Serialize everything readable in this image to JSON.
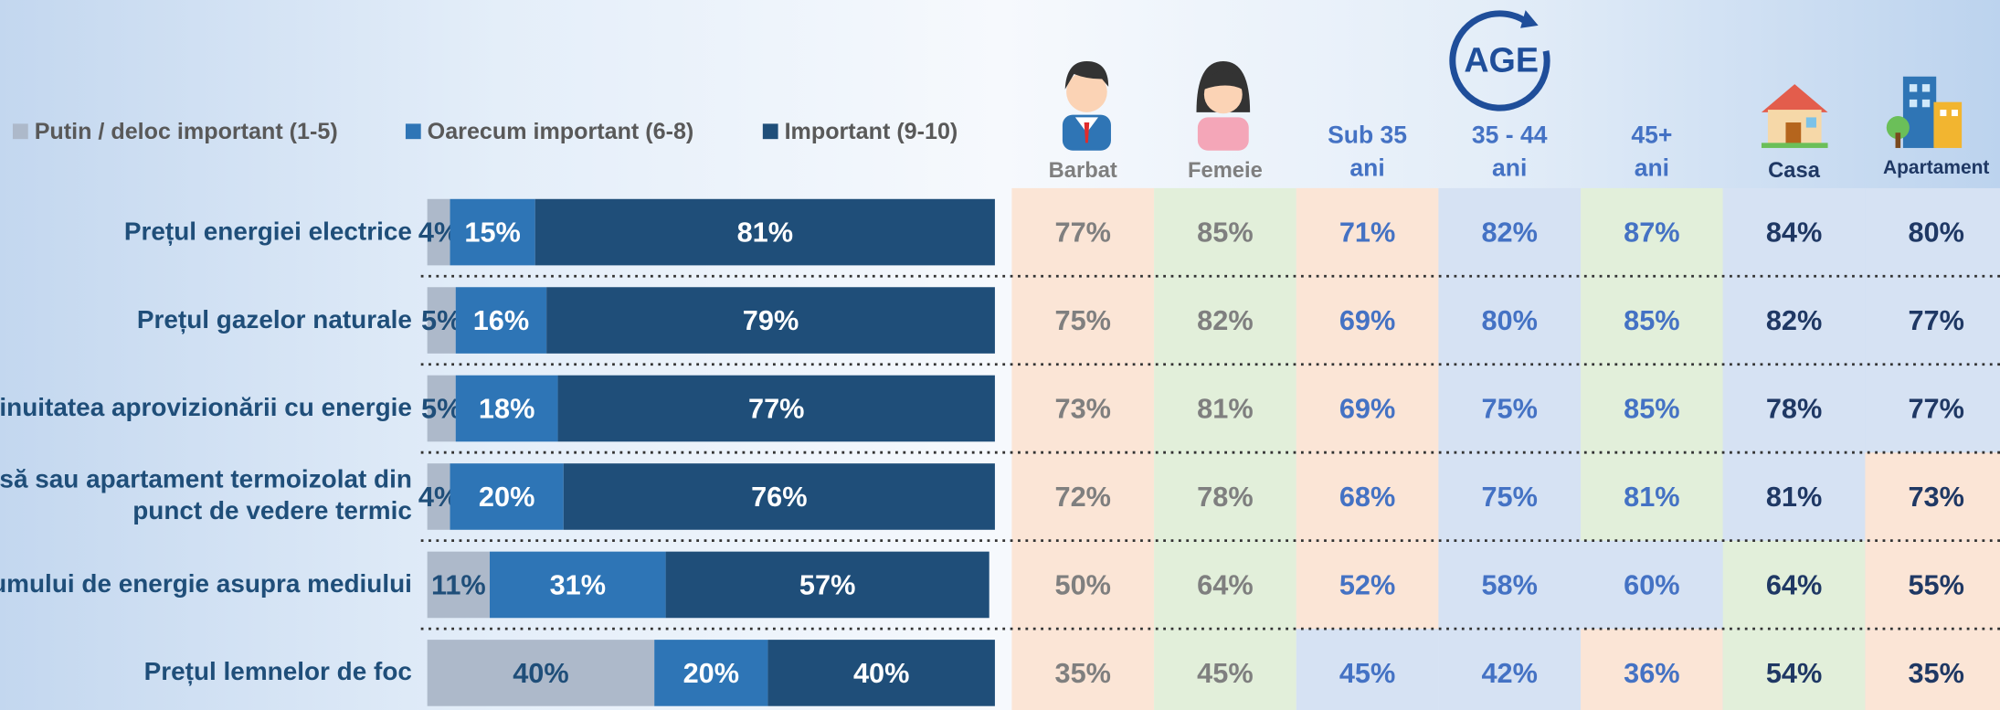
{
  "chart_data": {
    "type": "bar",
    "orientation": "horizontal",
    "stacked": true,
    "categories": [
      "Prețul energiei electrice",
      "Prețul gazelor naturale",
      "inuitatea aprovizionării cu energie",
      "să sau apartament termoizolat din\npunct de vedere termic",
      "umului de energie asupra mediului",
      "Prețul lemnelor de foc"
    ],
    "xlim": [
      0,
      100
    ],
    "series": [
      {
        "name": "Putin / deloc important (1-5)",
        "color": "#adb9ca",
        "label_color": "#1f4e79",
        "values": [
          4,
          5,
          5,
          4,
          11,
          40
        ],
        "value_labels": [
          "4%",
          "5%",
          "5%",
          "4%",
          "11%",
          "40%"
        ]
      },
      {
        "name": "Oarecum important (6-8)",
        "color": "#2e75b6",
        "label_color": "#ffffff",
        "values": [
          15,
          16,
          18,
          20,
          31,
          20
        ],
        "value_labels": [
          "15%",
          "16%",
          "18%",
          "20%",
          "31%",
          "20%"
        ]
      },
      {
        "name": "Important (9-10)",
        "color": "#1f4e79",
        "label_color": "#ffffff",
        "values": [
          81,
          79,
          77,
          76,
          57,
          40
        ],
        "value_labels": [
          "81%",
          "79%",
          "77%",
          "76%",
          "57%",
          "40%"
        ]
      }
    ]
  },
  "age_icon": "AGE",
  "table": {
    "columns": [
      {
        "label": "Barbat",
        "color": "#7f7f7f"
      },
      {
        "label": "Femeie",
        "color": "#7f7f7f"
      },
      {
        "label": "Sub 35\nani",
        "color": "#4472c4"
      },
      {
        "label": "35 - 44\nani",
        "color": "#4472c4"
      },
      {
        "label": "45+\nani",
        "color": "#4472c4"
      },
      {
        "label": "Casa",
        "color": "#1f3864"
      },
      {
        "label": "Apartament",
        "color": "#1f3864"
      }
    ],
    "rows": [
      [
        {
          "text": "77%",
          "fill": "#fbe5d6"
        },
        {
          "text": "85%",
          "fill": "#e2efda"
        },
        {
          "text": "71%",
          "fill": "#fbe5d6"
        },
        {
          "text": "82%",
          "fill": "#d6e2f3"
        },
        {
          "text": "87%",
          "fill": "#e2efda"
        },
        {
          "text": "84%",
          "fill": "#d6e2f3"
        },
        {
          "text": "80%",
          "fill": "#d6e2f3"
        }
      ],
      [
        {
          "text": "75%",
          "fill": "#fbe5d6"
        },
        {
          "text": "82%",
          "fill": "#e2efda"
        },
        {
          "text": "69%",
          "fill": "#fbe5d6"
        },
        {
          "text": "80%",
          "fill": "#d6e2f3"
        },
        {
          "text": "85%",
          "fill": "#e2efda"
        },
        {
          "text": "82%",
          "fill": "#d6e2f3"
        },
        {
          "text": "77%",
          "fill": "#d6e2f3"
        }
      ],
      [
        {
          "text": "73%",
          "fill": "#fbe5d6"
        },
        {
          "text": "81%",
          "fill": "#e2efda"
        },
        {
          "text": "69%",
          "fill": "#fbe5d6"
        },
        {
          "text": "75%",
          "fill": "#d6e2f3"
        },
        {
          "text": "85%",
          "fill": "#e2efda"
        },
        {
          "text": "78%",
          "fill": "#d6e2f3"
        },
        {
          "text": "77%",
          "fill": "#d6e2f3"
        }
      ],
      [
        {
          "text": "72%",
          "fill": "#fbe5d6"
        },
        {
          "text": "78%",
          "fill": "#e2efda"
        },
        {
          "text": "68%",
          "fill": "#fbe5d6"
        },
        {
          "text": "75%",
          "fill": "#d6e2f3"
        },
        {
          "text": "81%",
          "fill": "#e2efda"
        },
        {
          "text": "81%",
          "fill": "#d6e2f3"
        },
        {
          "text": "73%",
          "fill": "#fbe5d6"
        }
      ],
      [
        {
          "text": "50%",
          "fill": "#fbe5d6"
        },
        {
          "text": "64%",
          "fill": "#e2efda"
        },
        {
          "text": "52%",
          "fill": "#fbe5d6"
        },
        {
          "text": "58%",
          "fill": "#d6e2f3"
        },
        {
          "text": "60%",
          "fill": "#d6e2f3"
        },
        {
          "text": "64%",
          "fill": "#e2efda"
        },
        {
          "text": "55%",
          "fill": "#fbe5d6"
        }
      ],
      [
        {
          "text": "35%",
          "fill": "#fbe5d6"
        },
        {
          "text": "45%",
          "fill": "#e2efda"
        },
        {
          "text": "45%",
          "fill": "#d6e2f3"
        },
        {
          "text": "42%",
          "fill": "#d6e2f3"
        },
        {
          "text": "36%",
          "fill": "#fbe5d6"
        },
        {
          "text": "54%",
          "fill": "#e2efda"
        },
        {
          "text": "35%",
          "fill": "#fbe5d6"
        }
      ]
    ]
  }
}
